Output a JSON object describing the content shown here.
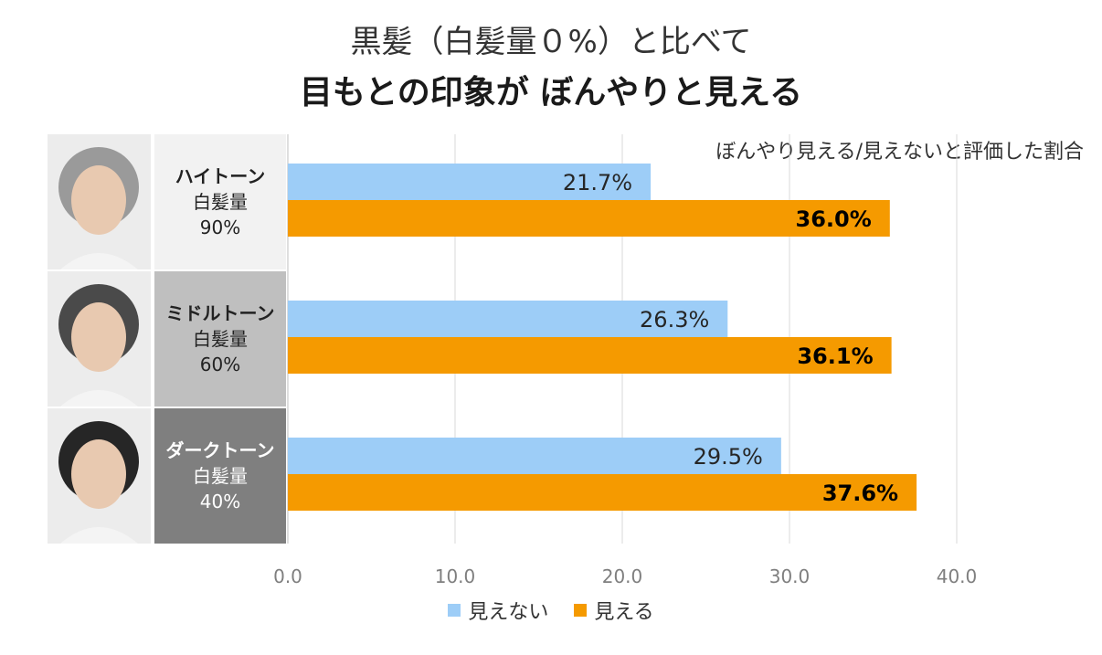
{
  "title_line1": "黒髪（白髪量０%）と比べて",
  "title_line2": "目もとの印象が ぼんやりと見える",
  "subtitle": "ぼんやり見える/見えないと評価した割合",
  "rows": [
    {
      "tone": "ハイトーン",
      "amount_label": "白髪量",
      "percent": "90%",
      "bg": "#f2f2f2",
      "fg": "#222222"
    },
    {
      "tone": "ミドルトーン",
      "amount_label": "白髪量",
      "percent": "60%",
      "bg": "#bfbfbf",
      "fg": "#222222"
    },
    {
      "tone": "ダークトーン",
      "amount_label": "白髪量",
      "percent": "40%",
      "bg": "#7f7f7f",
      "fg": "#ffffff"
    }
  ],
  "legend": [
    {
      "label": "見えない",
      "color": "#9dcdf7"
    },
    {
      "label": "見える",
      "color": "#f59a00"
    }
  ],
  "chart_data": {
    "type": "bar",
    "orientation": "horizontal",
    "categories": [
      "ハイトーン 白髪量90%",
      "ミドルトーン 白髪量60%",
      "ダークトーン 白髪量40%"
    ],
    "series": [
      {
        "name": "見えない",
        "values": [
          21.7,
          26.3,
          29.5
        ],
        "labels": [
          "21.7%",
          "26.3%",
          "29.5%"
        ],
        "color": "#9dcdf7"
      },
      {
        "name": "見える",
        "values": [
          36.0,
          36.1,
          37.6
        ],
        "labels": [
          "36.0%",
          "36.1%",
          "37.6%"
        ],
        "color": "#f59a00"
      }
    ],
    "xlim": [
      0,
      40
    ],
    "ticks": [
      "0.0",
      "10.0",
      "20.0",
      "30.0",
      "40.0"
    ],
    "grid": true,
    "legend_position": "bottom"
  }
}
